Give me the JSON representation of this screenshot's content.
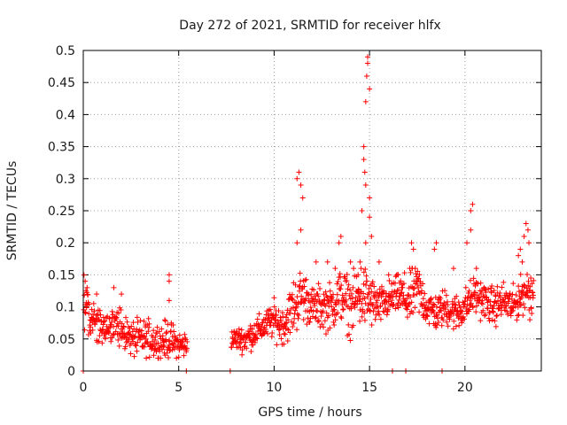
{
  "chart_data": {
    "type": "scatter",
    "title": "Day 272 of 2021, SRMTID for receiver hlfx",
    "xlabel": "GPS time / hours",
    "ylabel": "SRMTID / TECUs",
    "xlim": [
      0,
      24
    ],
    "ylim": [
      0,
      0.5
    ],
    "x_ticks": [
      0,
      5,
      10,
      15,
      20
    ],
    "y_ticks": [
      0,
      0.05,
      0.1,
      0.15,
      0.2,
      0.25,
      0.3,
      0.35,
      0.4,
      0.45,
      0.5
    ],
    "x_tick_labels": [
      "0",
      "5",
      "10",
      "15",
      "20"
    ],
    "y_tick_labels": [
      "0",
      "0.05",
      "0.1",
      "0.15",
      "0.2",
      "0.25",
      "0.3",
      "0.35",
      "0.4",
      "0.45",
      "0.5"
    ],
    "grid": true,
    "marker": "+",
    "color": "#ff0000",
    "series": [
      {
        "name": "SRMTID",
        "trend": [
          [
            0.0,
            0.11,
            0.03
          ],
          [
            0.5,
            0.08,
            0.02
          ],
          [
            1.0,
            0.07,
            0.02
          ],
          [
            1.5,
            0.075,
            0.02
          ],
          [
            2.0,
            0.065,
            0.02
          ],
          [
            2.5,
            0.05,
            0.02
          ],
          [
            3.0,
            0.05,
            0.02
          ],
          [
            3.5,
            0.05,
            0.02
          ],
          [
            4.0,
            0.045,
            0.02
          ],
          [
            4.5,
            0.05,
            0.02
          ],
          [
            5.0,
            0.04,
            0.015
          ],
          [
            5.4,
            0.04,
            0.015
          ],
          [
            7.8,
            0.05,
            0.01
          ],
          [
            8.5,
            0.05,
            0.015
          ],
          [
            9.0,
            0.06,
            0.015
          ],
          [
            9.5,
            0.07,
            0.015
          ],
          [
            10.0,
            0.08,
            0.02
          ],
          [
            10.5,
            0.07,
            0.02
          ],
          [
            11.0,
            0.1,
            0.03
          ],
          [
            11.5,
            0.12,
            0.03
          ],
          [
            12.0,
            0.1,
            0.02
          ],
          [
            12.5,
            0.1,
            0.025
          ],
          [
            13.0,
            0.1,
            0.025
          ],
          [
            13.5,
            0.12,
            0.03
          ],
          [
            14.0,
            0.1,
            0.03
          ],
          [
            14.5,
            0.12,
            0.04
          ],
          [
            15.0,
            0.11,
            0.03
          ],
          [
            15.5,
            0.1,
            0.02
          ],
          [
            16.0,
            0.11,
            0.02
          ],
          [
            16.5,
            0.12,
            0.02
          ],
          [
            17.0,
            0.11,
            0.03
          ],
          [
            17.5,
            0.13,
            0.03
          ],
          [
            18.0,
            0.1,
            0.02
          ],
          [
            18.5,
            0.09,
            0.02
          ],
          [
            19.0,
            0.1,
            0.02
          ],
          [
            19.5,
            0.09,
            0.02
          ],
          [
            20.0,
            0.1,
            0.02
          ],
          [
            20.5,
            0.12,
            0.02
          ],
          [
            21.0,
            0.11,
            0.02
          ],
          [
            21.5,
            0.1,
            0.02
          ],
          [
            22.0,
            0.11,
            0.02
          ],
          [
            22.5,
            0.1,
            0.02
          ],
          [
            23.0,
            0.12,
            0.02
          ],
          [
            23.5,
            0.13,
            0.03
          ]
        ],
        "gaps": [
          [
            5.45,
            7.75
          ]
        ],
        "spikes": [
          [
            0.1,
            0.14
          ],
          [
            0.2,
            0.13
          ],
          [
            0.7,
            0.12
          ],
          [
            1.6,
            0.13
          ],
          [
            2.0,
            0.12
          ],
          [
            4.5,
            0.15
          ],
          [
            4.5,
            0.14
          ],
          [
            4.5,
            0.11
          ],
          [
            11.2,
            0.3
          ],
          [
            11.3,
            0.31
          ],
          [
            11.4,
            0.29
          ],
          [
            11.5,
            0.27
          ],
          [
            11.2,
            0.2
          ],
          [
            11.4,
            0.22
          ],
          [
            12.2,
            0.17
          ],
          [
            12.8,
            0.17
          ],
          [
            13.2,
            0.16
          ],
          [
            13.4,
            0.2
          ],
          [
            13.5,
            0.21
          ],
          [
            14.0,
            0.17
          ],
          [
            14.4,
            0.15
          ],
          [
            14.5,
            0.17
          ],
          [
            14.6,
            0.25
          ],
          [
            14.7,
            0.33
          ],
          [
            14.7,
            0.35
          ],
          [
            14.75,
            0.31
          ],
          [
            14.8,
            0.29
          ],
          [
            14.8,
            0.42
          ],
          [
            14.85,
            0.46
          ],
          [
            14.9,
            0.48
          ],
          [
            14.9,
            0.49
          ],
          [
            15.0,
            0.44
          ],
          [
            15.0,
            0.27
          ],
          [
            15.0,
            0.24
          ],
          [
            15.1,
            0.21
          ],
          [
            14.8,
            0.2
          ],
          [
            15.5,
            0.17
          ],
          [
            16.0,
            0.15
          ],
          [
            16.5,
            0.15
          ],
          [
            17.2,
            0.2
          ],
          [
            17.3,
            0.19
          ],
          [
            18.4,
            0.19
          ],
          [
            18.5,
            0.2
          ],
          [
            19.4,
            0.16
          ],
          [
            20.1,
            0.2
          ],
          [
            20.3,
            0.25
          ],
          [
            20.4,
            0.26
          ],
          [
            20.3,
            0.22
          ],
          [
            20.6,
            0.16
          ],
          [
            22.8,
            0.18
          ],
          [
            22.9,
            0.19
          ],
          [
            23.0,
            0.17
          ],
          [
            23.1,
            0.21
          ],
          [
            23.2,
            0.23
          ],
          [
            23.3,
            0.22
          ],
          [
            23.35,
            0.2
          ],
          [
            23.4,
            0.08
          ]
        ],
        "zero_points": [
          0.0,
          5.4,
          7.7,
          16.2,
          16.9,
          18.8
        ]
      }
    ]
  }
}
